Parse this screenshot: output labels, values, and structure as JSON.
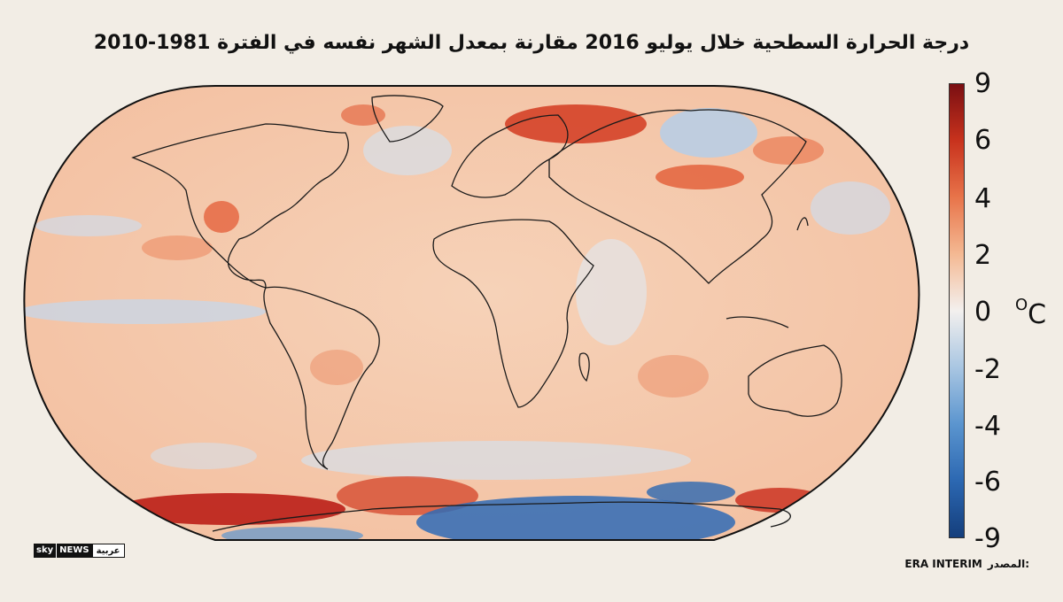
{
  "title": "درجة الحرارة السطحية خلال يوليو 2016 مقارنة بمعدل الشهر نفسه في الفترة 1981-2010",
  "colorbar": {
    "ticks": [
      "9",
      "6",
      "4",
      "2",
      "0",
      "-2",
      "-4",
      "-6",
      "-9"
    ],
    "unit": "C",
    "unit_degree": "O",
    "colors": [
      "#7a0f12",
      "#c8321d",
      "#e8744a",
      "#f4b993",
      "#f3f0ee",
      "#a9c6e2",
      "#5b95cf",
      "#2c68b2",
      "#143e7c"
    ]
  },
  "logo": {
    "sky": "sky",
    "news": "NEWS",
    "arabic": "عربية"
  },
  "source": {
    "label": "المصدر:",
    "value": "ERA INTERIM"
  }
}
